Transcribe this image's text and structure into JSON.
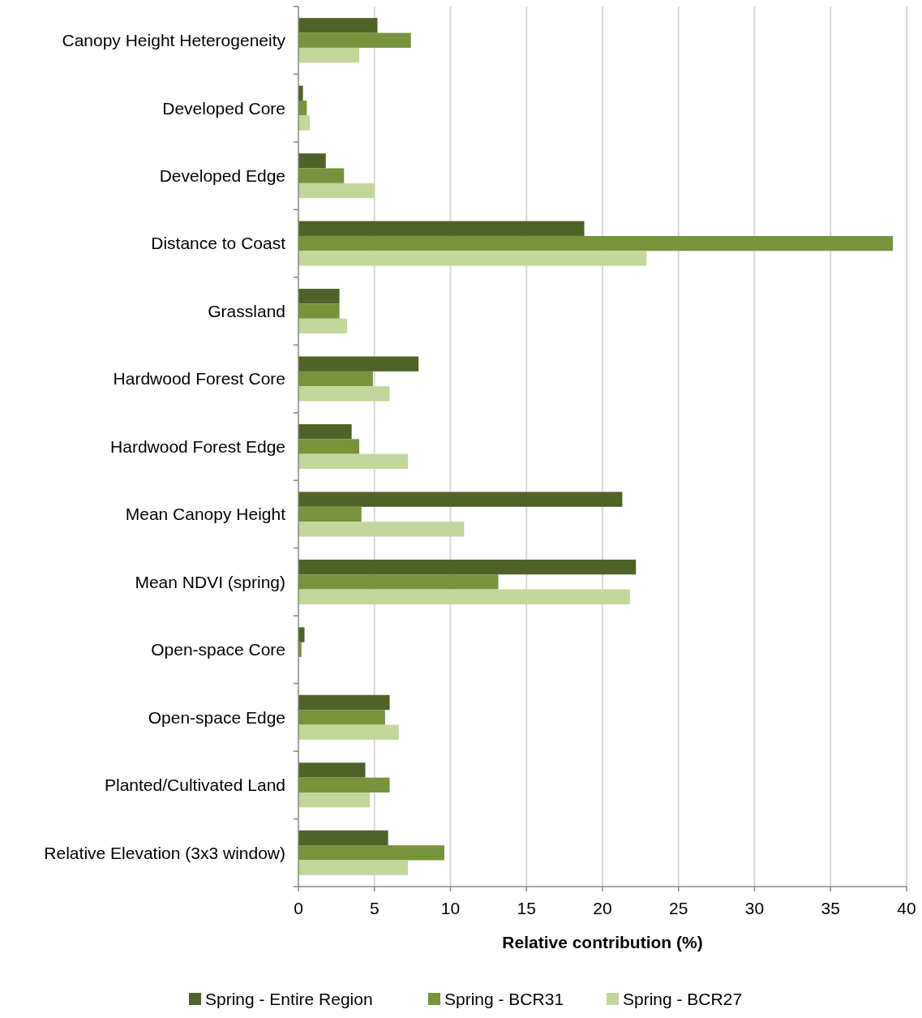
{
  "chart_data": {
    "type": "bar",
    "orientation": "horizontal",
    "xlabel": "Relative contribution (%)",
    "categories": [
      "Canopy Height Heterogeneity",
      "Developed Core",
      "Developed Edge",
      "Distance to Coast",
      "Grassland",
      "Hardwood Forest Core",
      "Hardwood Forest Edge",
      "Mean Canopy Height",
      "Mean NDVI (spring)",
      "Open-space Core",
      "Open-space Edge",
      "Planted/Cultivated Land",
      "Relative Elevation (3x3 window)"
    ],
    "series": [
      {
        "name": "Spring - Entire Region",
        "color": "#4f6228",
        "values": [
          5.2,
          0.3,
          1.8,
          18.8,
          2.7,
          7.9,
          3.5,
          21.3,
          22.2,
          0.4,
          6.0,
          4.4,
          5.9
        ]
      },
      {
        "name": "Spring - BCR31",
        "color": "#77933c",
        "values": [
          7.4,
          0.55,
          3.0,
          39.1,
          2.7,
          4.9,
          4.0,
          4.15,
          13.15,
          0.2,
          5.7,
          6.0,
          9.6
        ]
      },
      {
        "name": "Spring - BCR27",
        "color": "#c3d69b",
        "values": [
          4.0,
          0.75,
          5.0,
          22.9,
          3.2,
          6.0,
          7.2,
          10.9,
          21.8,
          null,
          6.6,
          4.7,
          7.2
        ]
      }
    ],
    "xlim": [
      0,
      40
    ],
    "xticks": [
      0,
      5,
      10,
      15,
      20,
      25,
      30,
      35,
      40
    ],
    "grid": "x",
    "legend": "bottom"
  }
}
